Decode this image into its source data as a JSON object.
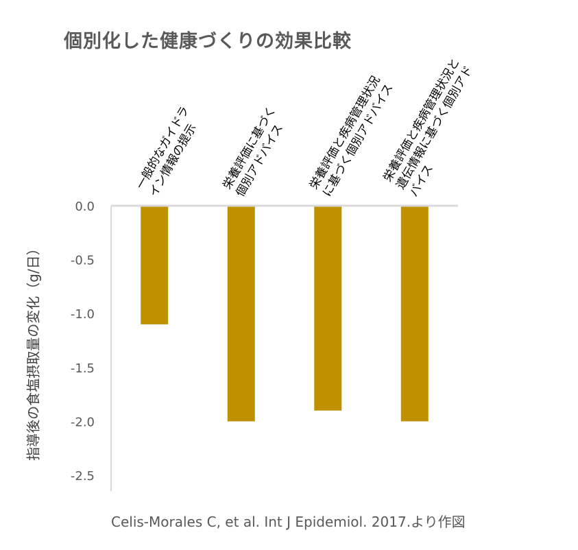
{
  "chart_data": {
    "type": "bar",
    "title": "個別化した健康づくりの効果比較",
    "ylabel": "指導後の食塩摂取量の変化（g/日）",
    "xlabel": "",
    "source": "Celis-Morales C, et al. Int J Epidemiol. 2017.より作図",
    "categories": [
      [
        "一般的なガイドラ",
        "イン情報の提示"
      ],
      [
        "栄養評価に基づく",
        "個別アドバイス"
      ],
      [
        "栄養評価と疾病管理状況",
        "に基づく個別アドバイス"
      ],
      [
        "栄養評価と疾病管理状況と",
        "遺伝情報に基づく個別アド",
        "バイス"
      ]
    ],
    "values": [
      -1.1,
      -2.0,
      -1.9,
      -2.0
    ],
    "ylim": [
      -2.5,
      0
    ],
    "yticks": [
      "0.0",
      "-0.5",
      "-1.0",
      "-1.5",
      "-2.0",
      "-2.5"
    ],
    "bar_color": "#BF9000",
    "grid": false,
    "legend": "none"
  }
}
